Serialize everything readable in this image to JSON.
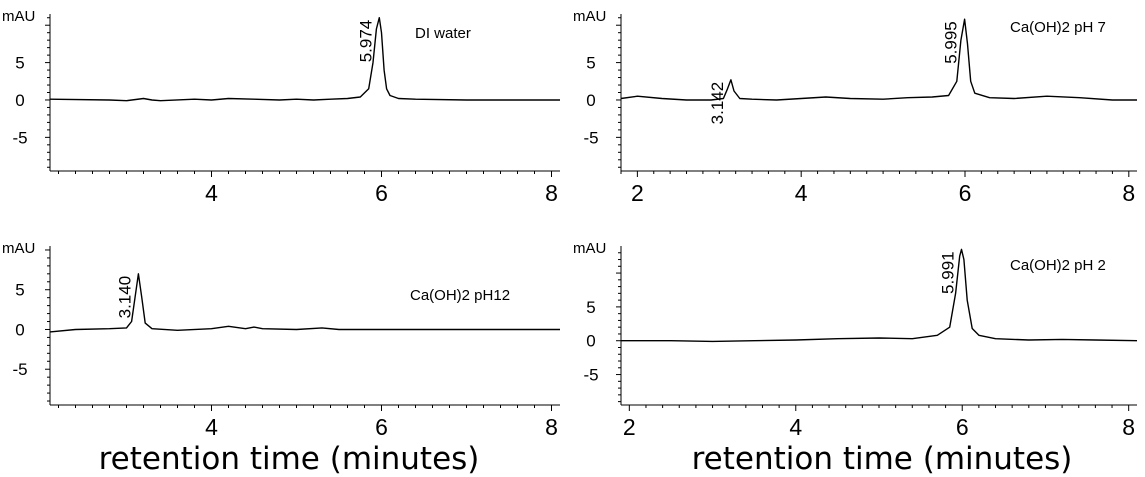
{
  "chart_data": [
    {
      "type": "line",
      "title": "",
      "annotation": "DI water",
      "ylabel": "mAU",
      "xlabel": "",
      "xlim": [
        2.1,
        8.1
      ],
      "ylim": [
        -9.5,
        11.5
      ],
      "x_ticks": [
        4,
        6,
        8
      ],
      "y_ticks": [
        5,
        0,
        -5
      ],
      "peaks": [
        {
          "label": "5.974",
          "x": 5.974,
          "y": 11.0
        }
      ],
      "series": [
        {
          "x": [
            2.1,
            2.8,
            3.0,
            3.2,
            3.3,
            3.4,
            3.8,
            4.0,
            4.2,
            4.5,
            4.8,
            5.0,
            5.2,
            5.4,
            5.6,
            5.75,
            5.85,
            5.9,
            5.94,
            5.974,
            6.0,
            6.03,
            6.06,
            6.1,
            6.2,
            6.4,
            7.0,
            8.1
          ],
          "y": [
            0.1,
            0.0,
            -0.1,
            0.2,
            0.0,
            -0.1,
            0.1,
            0.0,
            0.2,
            0.1,
            0.0,
            0.1,
            0.0,
            0.1,
            0.2,
            0.4,
            1.5,
            5.0,
            9.5,
            11.0,
            9.0,
            4.0,
            1.5,
            0.6,
            0.2,
            0.1,
            0.0,
            0.0
          ]
        }
      ]
    },
    {
      "type": "line",
      "title": "",
      "annotation": "Ca(OH)2 pH 7",
      "ylabel": "mAU",
      "xlabel": "",
      "xlim": [
        1.8,
        8.1
      ],
      "ylim": [
        -9.5,
        11.5
      ],
      "x_ticks": [
        2,
        4,
        6,
        8
      ],
      "y_ticks": [
        5,
        0,
        -5
      ],
      "peaks": [
        {
          "label": "3.142",
          "x": 3.142,
          "y": 2.7
        },
        {
          "label": "5.995",
          "x": 5.995,
          "y": 10.8
        }
      ],
      "series": [
        {
          "x": [
            1.8,
            2.0,
            2.3,
            2.6,
            2.9,
            3.05,
            3.1,
            3.142,
            3.18,
            3.25,
            3.4,
            3.7,
            4.0,
            4.3,
            4.6,
            5.0,
            5.3,
            5.6,
            5.8,
            5.9,
            5.95,
            5.995,
            6.03,
            6.07,
            6.12,
            6.3,
            6.6,
            7.0,
            7.4,
            7.8,
            8.1
          ],
          "y": [
            0.2,
            0.5,
            0.2,
            0.0,
            0.0,
            0.2,
            1.5,
            2.7,
            1.2,
            0.2,
            0.1,
            0.0,
            0.2,
            0.4,
            0.2,
            0.1,
            0.3,
            0.4,
            0.6,
            2.5,
            8.0,
            10.8,
            7.5,
            2.5,
            0.9,
            0.3,
            0.2,
            0.5,
            0.3,
            0.0,
            0.0
          ]
        }
      ]
    },
    {
      "type": "line",
      "title": "",
      "annotation": "Ca(OH)2 pH12",
      "ylabel": "mAU",
      "xlabel": "retention time (minutes)",
      "xlim": [
        2.1,
        8.1
      ],
      "ylim": [
        -9.5,
        10.5
      ],
      "x_ticks": [
        4,
        6,
        8
      ],
      "y_ticks": [
        5,
        0,
        -5
      ],
      "peaks": [
        {
          "label": "3.140",
          "x": 3.14,
          "y": 7.0
        }
      ],
      "series": [
        {
          "x": [
            2.1,
            2.4,
            2.8,
            3.0,
            3.06,
            3.1,
            3.14,
            3.18,
            3.22,
            3.3,
            3.6,
            4.0,
            4.2,
            4.4,
            4.5,
            4.6,
            5.0,
            5.3,
            5.5,
            6.0,
            7.0,
            8.1
          ],
          "y": [
            -0.3,
            0.0,
            0.1,
            0.2,
            1.0,
            4.0,
            7.0,
            4.0,
            0.8,
            0.1,
            -0.1,
            0.1,
            0.4,
            0.1,
            0.3,
            0.1,
            0.0,
            0.2,
            0.0,
            0.0,
            0.0,
            0.0
          ]
        }
      ]
    },
    {
      "type": "line",
      "title": "",
      "annotation": "Ca(OH)2 pH 2",
      "ylabel": "mAU",
      "xlabel": "retention time (minutes)",
      "xlim": [
        1.9,
        8.1
      ],
      "ylim": [
        -9.5,
        14.0
      ],
      "x_ticks": [
        2,
        4,
        6,
        8
      ],
      "y_ticks": [
        5,
        0,
        -5
      ],
      "peaks": [
        {
          "label": "5.991",
          "x": 5.991,
          "y": 13.5
        }
      ],
      "series": [
        {
          "x": [
            1.9,
            2.5,
            3.0,
            3.5,
            4.0,
            4.5,
            5.0,
            5.4,
            5.7,
            5.85,
            5.92,
            5.97,
            5.991,
            6.02,
            6.06,
            6.12,
            6.2,
            6.4,
            6.8,
            7.2,
            7.6,
            8.1
          ],
          "y": [
            0.0,
            0.0,
            -0.1,
            0.0,
            0.1,
            0.3,
            0.4,
            0.3,
            0.8,
            2.0,
            7.0,
            12.5,
            13.5,
            12.0,
            6.0,
            1.8,
            0.8,
            0.3,
            0.1,
            0.2,
            0.1,
            0.0
          ]
        }
      ]
    }
  ]
}
